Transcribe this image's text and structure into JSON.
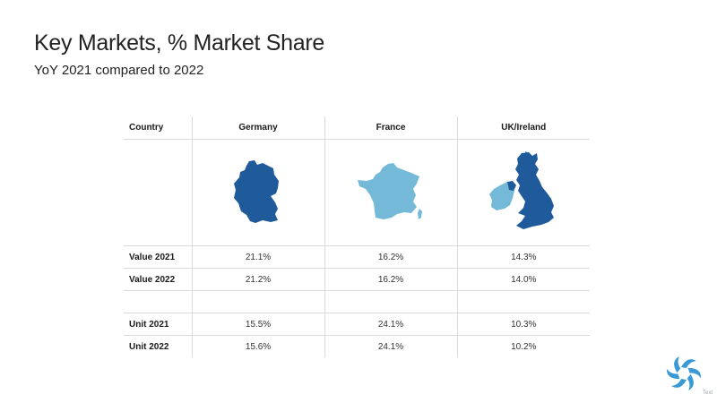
{
  "slide": {
    "title": "Key Markets, % Market Share",
    "subtitle": "YoY 2021 compared to 2022",
    "footer_text": "Text"
  },
  "table": {
    "header": [
      "Country",
      "Germany",
      "France",
      "UK/Ireland"
    ],
    "maps": [
      {
        "icon": "germany-map-icon",
        "color": "#1f5b9b"
      },
      {
        "icon": "france-map-icon",
        "color": "#74b9d8"
      },
      {
        "icon": "uk-ireland-map-icon",
        "color": "#1f5b9b",
        "secondary_color": "#74b9d8"
      }
    ],
    "rows": [
      {
        "label": "Value 2021",
        "values": [
          "21.1%",
          "16.2%",
          "14.3%"
        ]
      },
      {
        "label": "Value 2022",
        "values": [
          "21.2%",
          "16.2%",
          "14.0%"
        ]
      },
      {
        "label": "",
        "values": [
          "",
          "",
          ""
        ]
      },
      {
        "label": "Unit 2021",
        "values": [
          "15.5%",
          "24.1%",
          "10.3%"
        ]
      },
      {
        "label": "Unit 2022",
        "values": [
          "15.6%",
          "24.1%",
          "10.2%"
        ]
      }
    ]
  },
  "logo": {
    "icon": "brand-swirl-logo-icon",
    "color": "#3a9ad6"
  }
}
